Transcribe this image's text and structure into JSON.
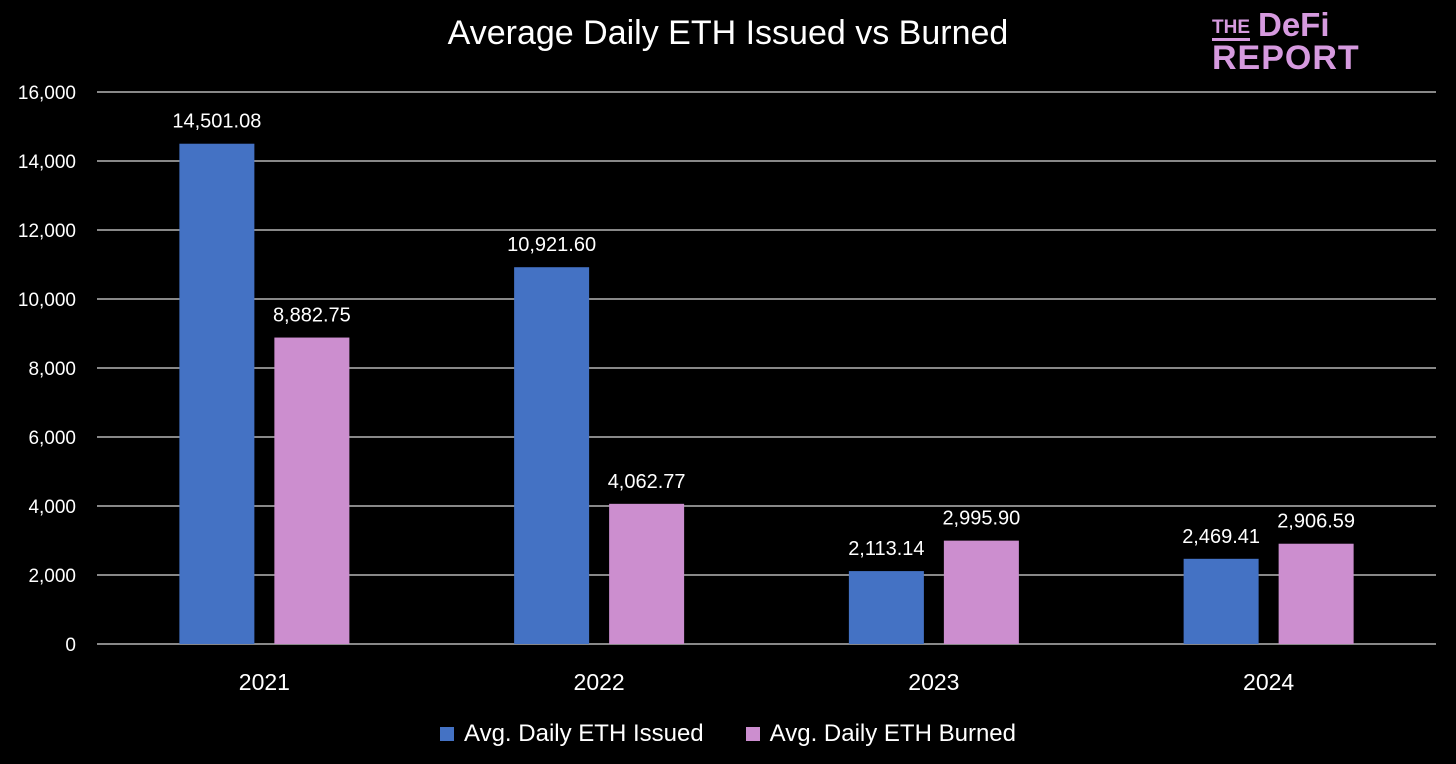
{
  "chart_data": {
    "type": "bar",
    "title": "Average Daily ETH Issued vs Burned",
    "categories": [
      "2021",
      "2022",
      "2023",
      "2024"
    ],
    "series": [
      {
        "name": "Avg. Daily ETH Issued",
        "color": "#4472c4",
        "values": [
          14501.08,
          10921.6,
          2113.14,
          2469.41
        ],
        "labels": [
          "14,501.08",
          "10,921.60",
          "2,113.14",
          "2,469.41"
        ]
      },
      {
        "name": "Avg. Daily ETH Burned",
        "color": "#cc8ecf",
        "values": [
          8882.75,
          4062.77,
          2995.9,
          2906.59
        ],
        "labels": [
          "8,882.75",
          "4,062.77",
          "2,995.90",
          "2,906.59"
        ]
      }
    ],
    "ylim": [
      0,
      16000
    ],
    "yticks": [
      0,
      2000,
      4000,
      6000,
      8000,
      10000,
      12000,
      14000,
      16000
    ],
    "ytick_labels": [
      "0",
      "2,000",
      "4,000",
      "6,000",
      "8,000",
      "10,000",
      "12,000",
      "14,000",
      "16,000"
    ],
    "grid": true,
    "legend": "bottom"
  },
  "logo": {
    "line1a": "THE",
    "line1b": "DeFi",
    "line2": "REPORT",
    "color": "#d69adf"
  }
}
